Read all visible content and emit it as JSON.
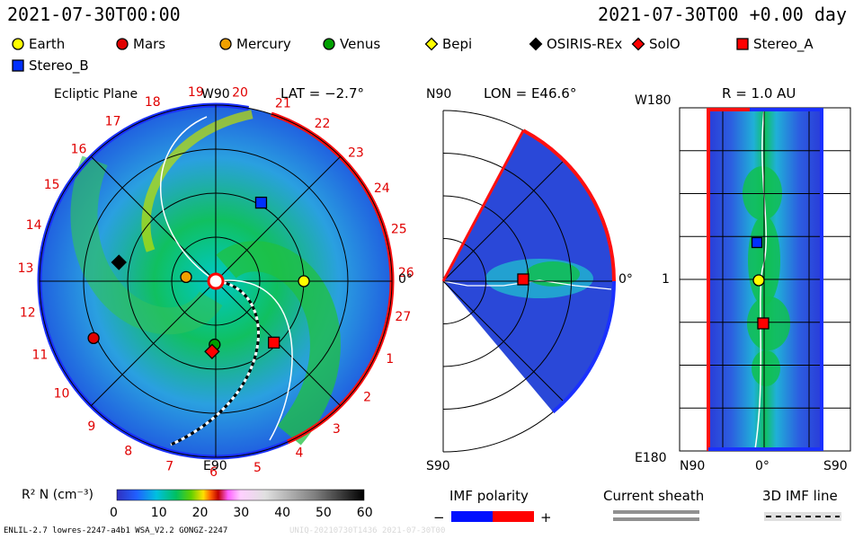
{
  "header": {
    "date_left": "2021-07-30T00:00",
    "date_right": "2021-07-30T00 +0.00 day"
  },
  "legend": [
    {
      "name": "Earth",
      "color": "#ffff00",
      "shape": "circle"
    },
    {
      "name": "Mars",
      "color": "#e00000",
      "shape": "circle"
    },
    {
      "name": "Mercury",
      "color": "#f0a000",
      "shape": "circle"
    },
    {
      "name": "Venus",
      "color": "#00a000",
      "shape": "circle"
    },
    {
      "name": "Bepi",
      "color": "#ffff00",
      "shape": "diamond"
    },
    {
      "name": "OSIRIS-REx",
      "color": "#000000",
      "shape": "diamond"
    },
    {
      "name": "SolO",
      "color": "#ff0000",
      "shape": "diamond"
    },
    {
      "name": "Stereo_A",
      "color": "#ff0000",
      "shape": "square"
    },
    {
      "name": "Stereo_B",
      "color": "#0030ff",
      "shape": "square"
    }
  ],
  "panels": {
    "ecliptic": {
      "title": "Ecliptic Plane",
      "lat": "LAT = −2.7°",
      "top_label": "W90",
      "bottom_label": "E90",
      "right_label": "0°",
      "hour_labels": [
        "19",
        "20",
        "21",
        "22",
        "23",
        "24",
        "25",
        "26",
        "27",
        "1",
        "2",
        "3",
        "4",
        "5",
        "6",
        "7",
        "8",
        "9",
        "10",
        "11",
        "12",
        "13",
        "14",
        "15",
        "16",
        "17",
        "18"
      ]
    },
    "meridional": {
      "title": "LON = E46.6°",
      "top_label": "N90",
      "bottom_label": "S90",
      "right_label": "0°"
    },
    "radial": {
      "title": "R = 1.0 AU",
      "top_label": "W180",
      "bottom_label": "E180",
      "mid_label": "1",
      "x_left": "N90",
      "x_mid": "0°",
      "x_right": "S90"
    }
  },
  "colorbar": {
    "label": "R² N (cm⁻³)",
    "ticks": [
      "0",
      "10",
      "20",
      "30",
      "40",
      "50",
      "60"
    ]
  },
  "keys": {
    "imf_polarity": "IMF polarity",
    "minus": "−",
    "plus": "+",
    "current_sheath": "Current sheath",
    "imf_line": "3D IMF line"
  },
  "footer": {
    "left": "ENLIL-2.7 lowres-2247-a4b1 WSA_V2.2 GONGZ-2247",
    "right": "UNIQ-20210730T1436 2021-07-30T00"
  },
  "chart_data": {
    "type": "heatmap",
    "quantity": "R² N (cm⁻³)",
    "color_range": [
      0,
      60
    ],
    "bodies": [
      {
        "name": "Earth",
        "panel": "ecliptic",
        "r_au": 1.0,
        "lon_deg": 0
      },
      {
        "name": "Mars",
        "panel": "ecliptic",
        "r_au": 1.53,
        "lon_deg": -155
      },
      {
        "name": "Mercury",
        "panel": "ecliptic",
        "r_au": 0.34,
        "lon_deg": 172
      },
      {
        "name": "Venus",
        "panel": "ecliptic",
        "r_au": 0.72,
        "lon_deg": -91
      },
      {
        "name": "OSIRIS-REx",
        "panel": "ecliptic",
        "r_au": 1.12,
        "lon_deg": 169
      },
      {
        "name": "SolO",
        "panel": "ecliptic",
        "r_au": 0.8,
        "lon_deg": -93
      },
      {
        "name": "Stereo_A",
        "panel": "ecliptic",
        "r_au": 0.96,
        "lon_deg": -46.6
      },
      {
        "name": "Stereo_B",
        "panel": "ecliptic",
        "r_au": 1.03,
        "lon_deg": 60
      }
    ]
  }
}
